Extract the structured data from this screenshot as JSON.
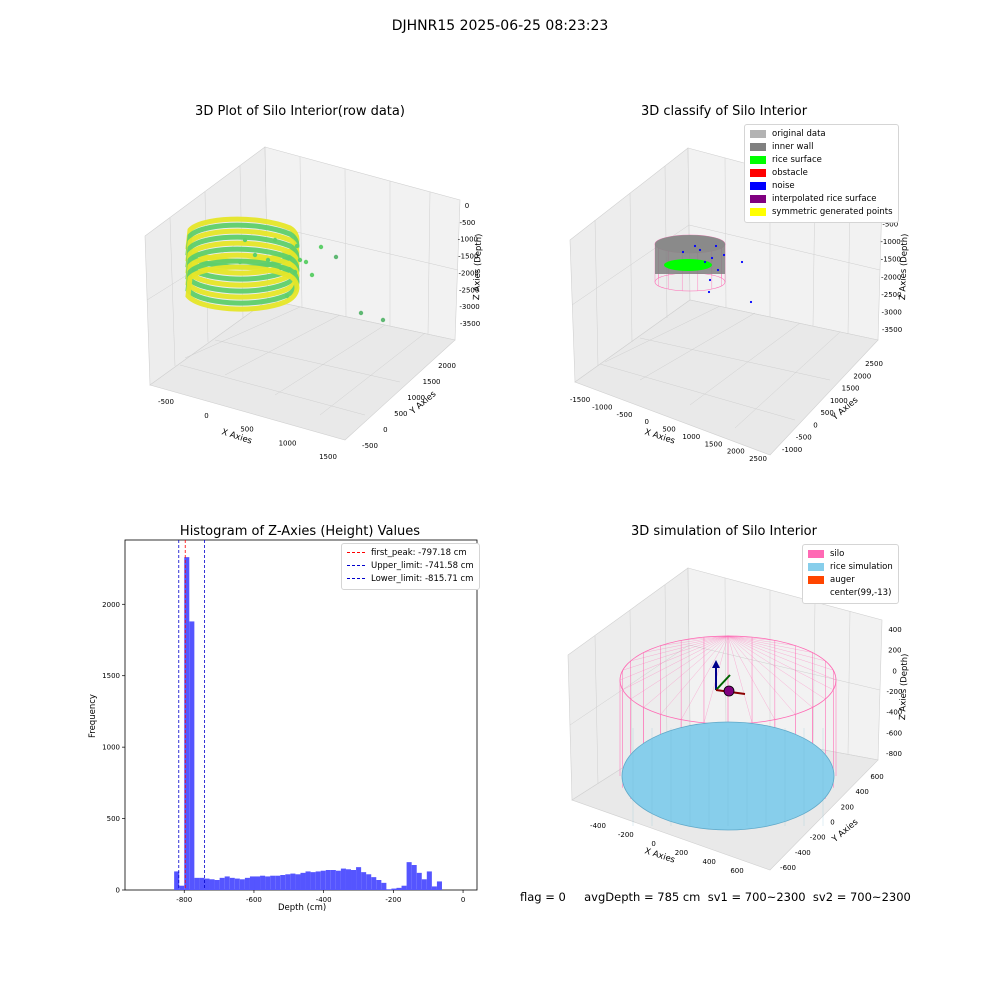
{
  "figure": {
    "suptitle": "DJHNR15 2025-06-25 08:23:23",
    "status_line": "flag = 0     avgDepth = 785 cm  sv1 = 700~2300  sv2 = 700~2300"
  },
  "panel_raw": {
    "title": "3D Plot of Silo Interior(row data)",
    "xlabel": "X Axies",
    "ylabel": "Y Axies",
    "zlabel": "Z Axies (Depth)",
    "xticks": [
      "-500",
      "0",
      "500",
      "1000",
      "1500"
    ],
    "yticks": [
      "-500",
      "0",
      "500",
      "1000",
      "1500",
      "2000"
    ],
    "zticks": [
      "0",
      "-500",
      "-1000",
      "-1500",
      "-2000",
      "-2500",
      "-3000",
      "-3500"
    ],
    "colors": {
      "low": "#5fcf6a",
      "high": "#e6e628"
    }
  },
  "panel_classify": {
    "title": "3D classify of Silo Interior",
    "xlabel": "X Axies",
    "ylabel": "Y Axies",
    "zlabel": "Z Axies (Depth)",
    "xticks": [
      "-1500",
      "-1000",
      "-500",
      "0",
      "500",
      "1000",
      "1500",
      "2000",
      "2500"
    ],
    "yticks": [
      "-1000",
      "-500",
      "0",
      "500",
      "1000",
      "1500",
      "2000",
      "2500"
    ],
    "zticks": [
      "0",
      "-500",
      "-1000",
      "-1500",
      "-2000",
      "-2500",
      "-3000",
      "-3500"
    ],
    "legend": [
      {
        "label": "original data",
        "color": "#b3b3b3"
      },
      {
        "label": "inner wall",
        "color": "#808080"
      },
      {
        "label": "rice surface",
        "color": "#00ff00"
      },
      {
        "label": "obstacle",
        "color": "#ff0000"
      },
      {
        "label": "noise",
        "color": "#0000ff"
      },
      {
        "label": "interpolated rice surface",
        "color": "#800080"
      },
      {
        "label": "symmetric generated points",
        "color": "#ffff00"
      }
    ]
  },
  "panel_hist": {
    "title": "Histogram of Z-Axies (Height) Values",
    "xlabel": "Depth (cm)",
    "ylabel": "Frequency",
    "legend": [
      {
        "label": "first_peak: -797.18 cm",
        "color": "#ff0000"
      },
      {
        "label": "Upper_limit: -741.58 cm",
        "color": "#0000cc"
      },
      {
        "label": "Lower_limit: -815.71 cm",
        "color": "#0000cc"
      }
    ]
  },
  "panel_sim": {
    "title": "3D simulation of Silo Interior",
    "xlabel": "X Axies",
    "ylabel": "Y Axies",
    "zlabel": "Z Axies (Depth)",
    "xticks": [
      "-400",
      "-200",
      "0",
      "200",
      "400",
      "600"
    ],
    "yticks": [
      "-600",
      "-400",
      "-200",
      "0",
      "200",
      "400",
      "600"
    ],
    "zticks": [
      "400",
      "200",
      "0",
      "-200",
      "-400",
      "-600",
      "-800"
    ],
    "legend": [
      {
        "label": "silo",
        "color": "#ff69b4"
      },
      {
        "label": "rice simulation",
        "color": "#87ceeb"
      },
      {
        "label": "auger",
        "color": "#ff4500"
      },
      {
        "label": "center(99,-13)",
        "color": ""
      }
    ]
  },
  "chart_data": {
    "type": "bar",
    "title": "Histogram of Z-Axies (Height) Values",
    "xlabel": "Depth (cm)",
    "ylabel": "Frequency",
    "xlim": [
      -970,
      40
    ],
    "ylim": [
      0,
      2450
    ],
    "xticks": [
      -800,
      -600,
      -400,
      -200,
      0
    ],
    "yticks": [
      0,
      500,
      1000,
      1500,
      2000
    ],
    "bin_width": 14.5,
    "bins": [
      {
        "x": -829,
        "value": 130
      },
      {
        "x": -814.5,
        "value": 30
      },
      {
        "x": -800,
        "value": 2330
      },
      {
        "x": -785.5,
        "value": 1880
      },
      {
        "x": -771,
        "value": 85
      },
      {
        "x": -756.5,
        "value": 85
      },
      {
        "x": -742,
        "value": 80
      },
      {
        "x": -727.5,
        "value": 75
      },
      {
        "x": -713,
        "value": 70
      },
      {
        "x": -698.5,
        "value": 85
      },
      {
        "x": -684,
        "value": 95
      },
      {
        "x": -669.5,
        "value": 85
      },
      {
        "x": -655,
        "value": 80
      },
      {
        "x": -640.5,
        "value": 75
      },
      {
        "x": -626,
        "value": 85
      },
      {
        "x": -611.5,
        "value": 95
      },
      {
        "x": -597,
        "value": 95
      },
      {
        "x": -582.5,
        "value": 100
      },
      {
        "x": -568,
        "value": 95
      },
      {
        "x": -553.5,
        "value": 100
      },
      {
        "x": -539,
        "value": 100
      },
      {
        "x": -524.5,
        "value": 105
      },
      {
        "x": -510,
        "value": 110
      },
      {
        "x": -495.5,
        "value": 115
      },
      {
        "x": -481,
        "value": 110
      },
      {
        "x": -466.5,
        "value": 120
      },
      {
        "x": -452,
        "value": 130
      },
      {
        "x": -437.5,
        "value": 125
      },
      {
        "x": -423,
        "value": 130
      },
      {
        "x": -408.5,
        "value": 135
      },
      {
        "x": -394,
        "value": 140
      },
      {
        "x": -379.5,
        "value": 140
      },
      {
        "x": -365,
        "value": 135
      },
      {
        "x": -350.5,
        "value": 150
      },
      {
        "x": -336,
        "value": 145
      },
      {
        "x": -321.5,
        "value": 140
      },
      {
        "x": -307,
        "value": 160
      },
      {
        "x": -292.5,
        "value": 125
      },
      {
        "x": -278,
        "value": 110
      },
      {
        "x": -263.5,
        "value": 90
      },
      {
        "x": -249,
        "value": 70
      },
      {
        "x": -234.5,
        "value": 50
      },
      {
        "x": -220,
        "value": 5
      },
      {
        "x": -205.5,
        "value": 10
      },
      {
        "x": -191,
        "value": 15
      },
      {
        "x": -176.5,
        "value": 30
      },
      {
        "x": -162,
        "value": 195
      },
      {
        "x": -147.5,
        "value": 175
      },
      {
        "x": -133,
        "value": 120
      },
      {
        "x": -118.5,
        "value": 75
      },
      {
        "x": -104,
        "value": 130
      },
      {
        "x": -89.5,
        "value": 25
      },
      {
        "x": -75,
        "value": 60
      }
    ],
    "vlines": [
      {
        "name": "first_peak",
        "x": -797.18,
        "color": "#ff0000"
      },
      {
        "name": "Upper_limit",
        "x": -741.58,
        "color": "#0000cc"
      },
      {
        "name": "Lower_limit",
        "x": -815.71,
        "color": "#0000cc"
      }
    ],
    "bar_color": "#5555ff"
  }
}
